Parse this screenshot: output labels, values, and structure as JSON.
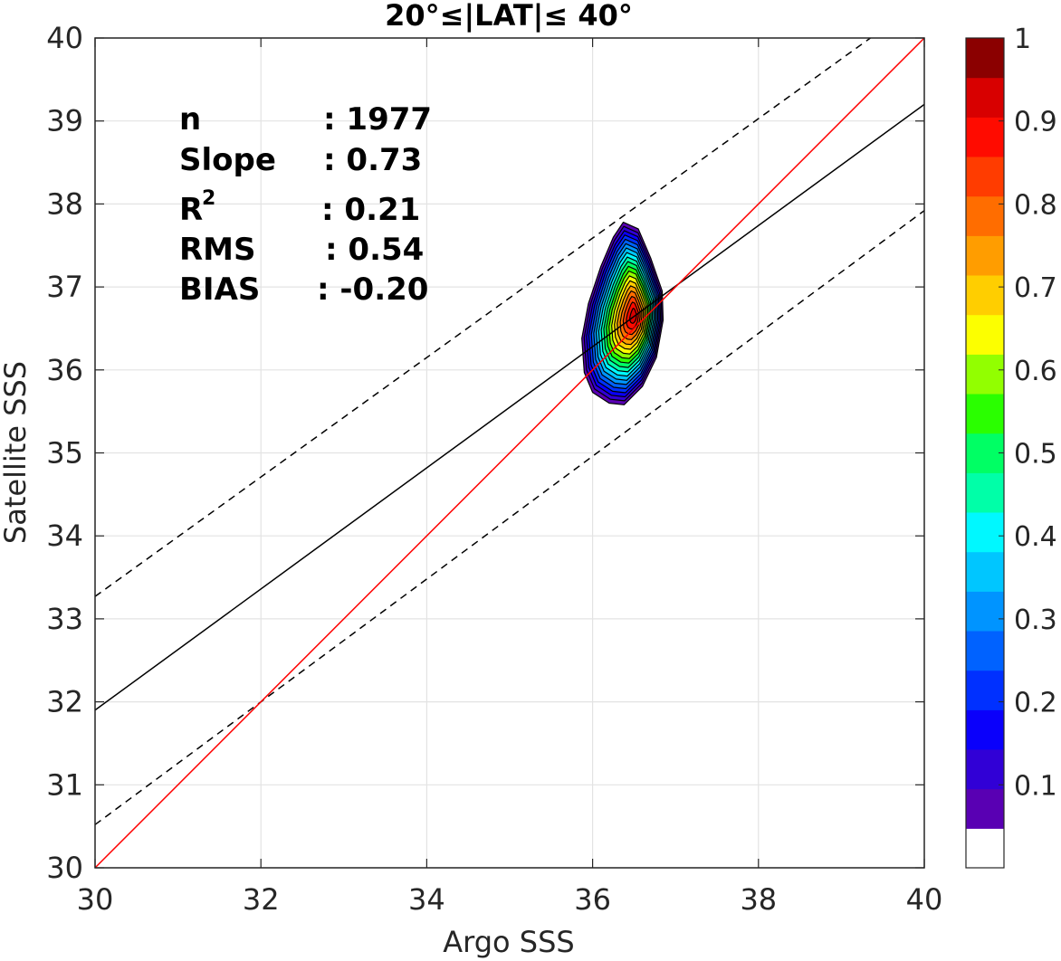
{
  "chart_data": {
    "type": "contour",
    "title": "20°≤|LAT|≤ 40°",
    "xlabel": "Argo SSS",
    "ylabel": "Satellite SSS",
    "xlim": [
      30,
      40
    ],
    "ylim": [
      30,
      40
    ],
    "xticks": [
      "30",
      "32",
      "34",
      "36",
      "38",
      "40"
    ],
    "yticks": [
      "30",
      "31",
      "32",
      "33",
      "34",
      "35",
      "36",
      "37",
      "38",
      "39",
      "40"
    ],
    "grid": true,
    "stats": {
      "n_label": "n",
      "n_value": ": 1977",
      "slope_label": "Slope",
      "slope_value": ": 0.73",
      "r2_label": "R",
      "r2_sup": "2",
      "r2_value": ": 0.21",
      "rms_label": "RMS",
      "rms_value": ": 0.54",
      "bias_label": "BIAS",
      "bias_value": ": -0.20"
    },
    "lines": {
      "one_to_one": {
        "x": [
          30,
          40
        ],
        "y": [
          30,
          40
        ],
        "color": "#ff0000"
      },
      "regression": {
        "x": [
          30,
          40
        ],
        "y": [
          31.9,
          39.2
        ],
        "color": "#000000"
      },
      "upper_bound": {
        "x": [
          30,
          39.35
        ],
        "y": [
          33.27,
          40
        ],
        "color": "#000000",
        "dash": true
      },
      "lower_bound": {
        "x": [
          30,
          40
        ],
        "y": [
          30.52,
          37.92
        ],
        "color": "#000000",
        "dash": true
      }
    },
    "density": {
      "center": [
        36.5,
        36.65
      ],
      "levels": [
        0.05,
        0.1,
        0.15,
        0.2,
        0.25,
        0.3,
        0.35,
        0.4,
        0.45,
        0.5,
        0.55,
        0.6,
        0.65,
        0.7,
        0.75,
        0.8,
        0.85,
        0.9,
        0.95
      ],
      "outer_contour": {
        "x": [
          36.37,
          36.55,
          36.7,
          36.84,
          36.85,
          36.77,
          36.6,
          36.38,
          36.2,
          36.0,
          35.9,
          35.87,
          35.95,
          36.1,
          36.25
        ],
        "y": [
          37.78,
          37.7,
          37.35,
          36.95,
          36.6,
          36.15,
          35.8,
          35.58,
          35.6,
          35.73,
          35.97,
          36.38,
          36.8,
          37.25,
          37.6
        ]
      }
    },
    "colorbar": {
      "ticks": [
        "0.1",
        "0.2",
        "0.3",
        "0.4",
        "0.5",
        "0.6",
        "0.7",
        "0.8",
        "0.9",
        "1"
      ],
      "colors": [
        "#ffffff",
        "#5900b3",
        "#3100d6",
        "#0a00fb",
        "#0030ff",
        "#0062ff",
        "#0094ff",
        "#00c6ff",
        "#00f8ff",
        "#00ffa8",
        "#00ff64",
        "#2aff00",
        "#92ff00",
        "#fcff00",
        "#ffce00",
        "#ff9d00",
        "#ff6d00",
        "#ff3c00",
        "#ff0b00",
        "#d80000",
        "#8b0000"
      ]
    }
  }
}
